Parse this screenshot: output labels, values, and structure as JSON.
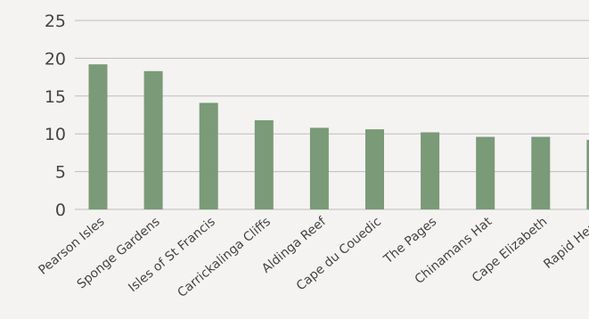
{
  "chart_data": {
    "type": "bar",
    "categories": [
      "Pearson Isles",
      "Sponge Gardens",
      "Isles of St Francis",
      "Carrickalinga Cliffs",
      "Aldinga Reef",
      "Cape du Couedic",
      "The Pages",
      "Chinamans Hat",
      "Cape Elizabeth",
      "Rapid Head"
    ],
    "values": [
      19.2,
      18.3,
      14.1,
      11.8,
      10.8,
      10.6,
      10.2,
      9.6,
      9.6,
      9.2
    ],
    "title": "",
    "xlabel": "",
    "ylabel": "",
    "ylim": [
      0,
      25
    ],
    "yticks": [
      0,
      5,
      10,
      15,
      20,
      25
    ],
    "grid": true,
    "legend": "none",
    "bar_color": "#7a9a78",
    "grid_color": "#bdbdbd",
    "text_color": "#444444",
    "background": "#f4f3f1"
  }
}
